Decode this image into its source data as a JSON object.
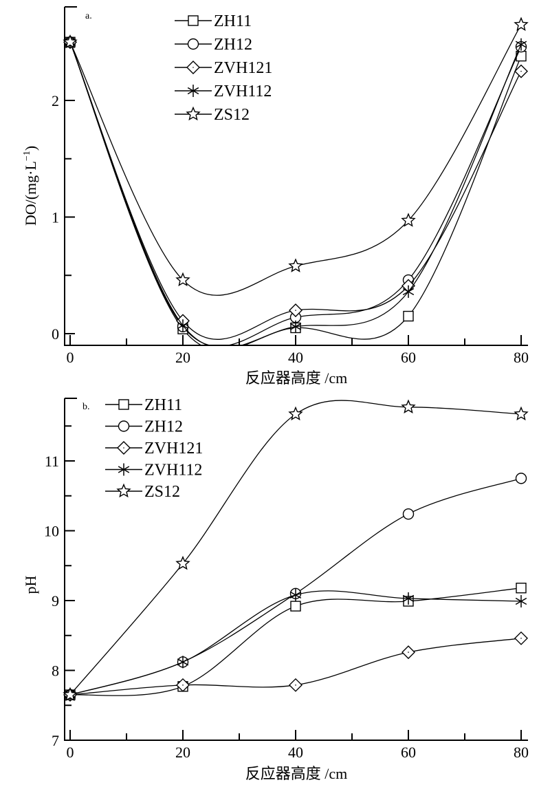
{
  "chart_data": [
    {
      "type": "line",
      "panel_label": "a.",
      "title": "",
      "xlabel": "反应器高度 /cm",
      "ylabel": "DO/(mg·L",
      "ylabel_sup": "−1",
      "ylabel_close": ")",
      "x": [
        0,
        20,
        40,
        60,
        80
      ],
      "xlim": [
        -1,
        81
      ],
      "ylim": [
        -0.1,
        2.8
      ],
      "xticks": [
        0,
        20,
        40,
        60,
        80
      ],
      "xtick_labels": [
        "0",
        "20",
        "40",
        "60",
        "80"
      ],
      "xminor": [
        10,
        30,
        50,
        70
      ],
      "yticks": [
        0,
        1,
        2
      ],
      "ytick_labels": [
        "0",
        "1",
        "2"
      ],
      "yminor": [
        0.5,
        1.5,
        2.5
      ],
      "grid": false,
      "legend_position": "top-center",
      "series": [
        {
          "name": "ZH11",
          "marker": "square",
          "values": [
            2.5,
            0.04,
            0.05,
            0.15,
            2.38
          ]
        },
        {
          "name": "ZH12",
          "marker": "circle",
          "values": [
            2.5,
            0.06,
            0.14,
            0.46,
            2.46
          ]
        },
        {
          "name": "ZVH121",
          "marker": "diamond",
          "values": [
            2.5,
            0.11,
            0.2,
            0.41,
            2.25
          ]
        },
        {
          "name": "ZVH112",
          "marker": "asterisk",
          "values": [
            2.5,
            0.07,
            0.06,
            0.36,
            2.48
          ]
        },
        {
          "name": "ZS12",
          "marker": "star",
          "values": [
            2.5,
            0.46,
            0.58,
            0.97,
            2.65
          ]
        }
      ]
    },
    {
      "type": "line",
      "panel_label": "b.",
      "title": "",
      "xlabel": "反应器高度 /cm",
      "ylabel": "pH",
      "x": [
        0,
        20,
        40,
        60,
        80
      ],
      "xlim": [
        -1,
        81
      ],
      "ylim": [
        7,
        11.9
      ],
      "xticks": [
        0,
        20,
        40,
        60,
        80
      ],
      "xtick_labels": [
        "0",
        "20",
        "40",
        "60",
        "80"
      ],
      "xminor": [
        10,
        30,
        50,
        70
      ],
      "yticks": [
        7,
        8,
        9,
        10,
        11
      ],
      "ytick_labels": [
        "7",
        "8",
        "9",
        "10",
        "11"
      ],
      "yminor": [
        7.5,
        8.5,
        9.5,
        10.5,
        11.5
      ],
      "grid": false,
      "legend_position": "top-left",
      "series": [
        {
          "name": "ZH11",
          "marker": "square",
          "values": [
            7.65,
            7.77,
            8.92,
            8.99,
            9.18
          ]
        },
        {
          "name": "ZH12",
          "marker": "circle",
          "values": [
            7.65,
            8.12,
            9.1,
            10.24,
            10.75
          ]
        },
        {
          "name": "ZVH121",
          "marker": "diamond",
          "values": [
            7.65,
            7.79,
            7.79,
            8.26,
            8.46
          ]
        },
        {
          "name": "ZVH112",
          "marker": "asterisk",
          "values": [
            7.65,
            8.12,
            9.08,
            9.03,
            8.99
          ]
        },
        {
          "name": "ZS12",
          "marker": "star",
          "values": [
            7.65,
            9.53,
            11.67,
            11.77,
            11.67
          ]
        }
      ]
    }
  ]
}
